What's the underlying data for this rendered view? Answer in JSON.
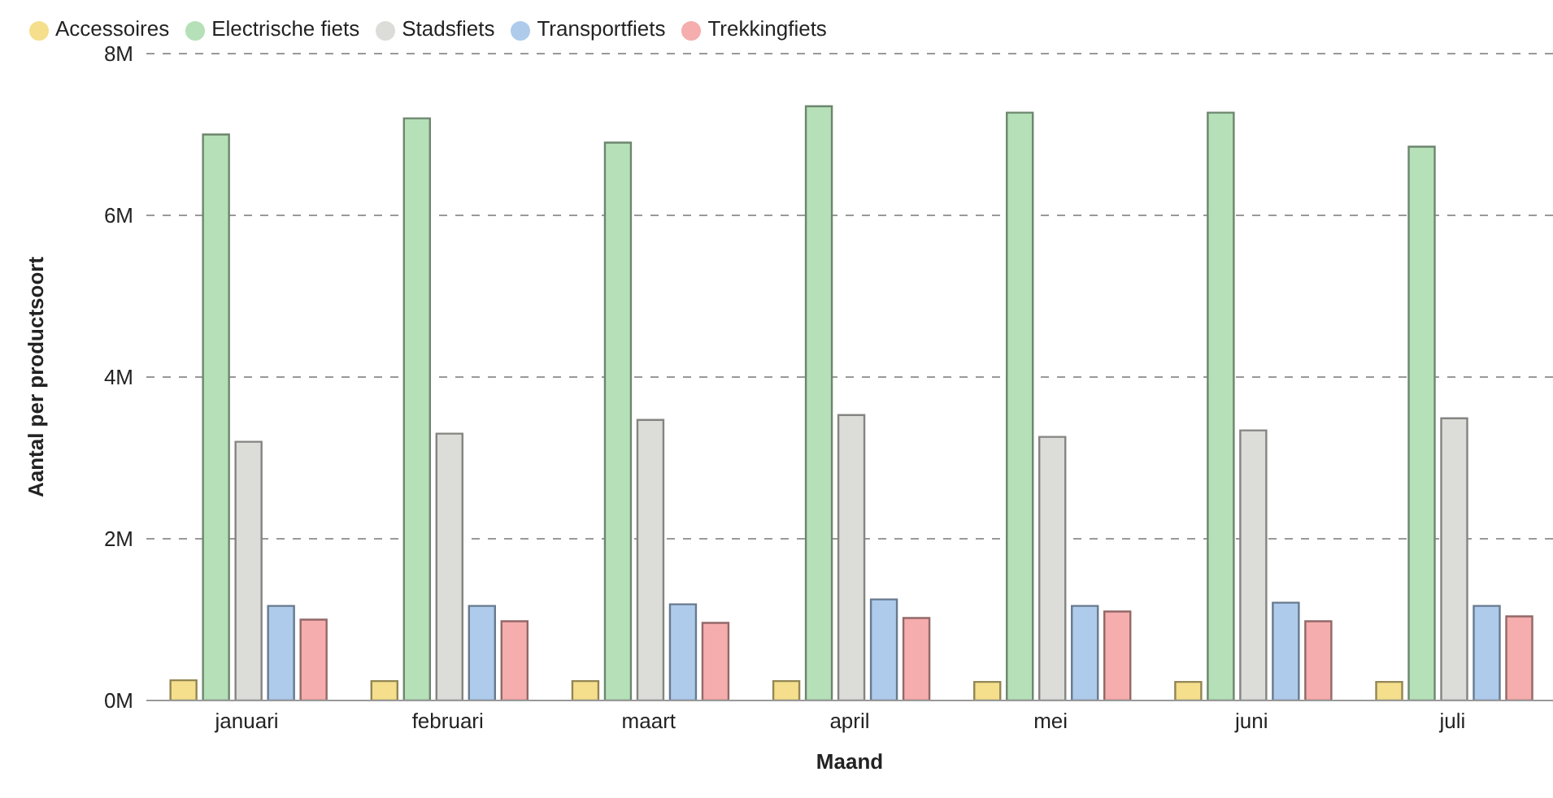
{
  "chart_data": {
    "type": "bar",
    "xlabel": "Maand",
    "ylabel": "Aantal per productsoort",
    "categories": [
      "januari",
      "februari",
      "maart",
      "april",
      "mei",
      "juni",
      "juli"
    ],
    "series": [
      {
        "name": "Accessoires",
        "color": "#f5df8c",
        "values": [
          0.25,
          0.24,
          0.24,
          0.24,
          0.23,
          0.23,
          0.23
        ]
      },
      {
        "name": "Electrische fiets",
        "color": "#b5e0b8",
        "values": [
          7.0,
          7.2,
          6.9,
          7.35,
          7.27,
          7.27,
          6.85
        ]
      },
      {
        "name": "Stadsfiets",
        "color": "#dcdcd8",
        "values": [
          3.2,
          3.3,
          3.47,
          3.53,
          3.26,
          3.34,
          3.49
        ]
      },
      {
        "name": "Transportfiets",
        "color": "#aecbec",
        "values": [
          1.17,
          1.17,
          1.19,
          1.25,
          1.17,
          1.21,
          1.17
        ]
      },
      {
        "name": "Trekkingfiets",
        "color": "#f6adad",
        "values": [
          1.0,
          0.98,
          0.96,
          1.02,
          1.1,
          0.98,
          1.04
        ]
      }
    ],
    "ylim": [
      0,
      8
    ],
    "yticks": [
      {
        "value": 0,
        "label": "0M"
      },
      {
        "value": 2,
        "label": "2M"
      },
      {
        "value": 4,
        "label": "4M"
      },
      {
        "value": 6,
        "label": "6M"
      },
      {
        "value": 8,
        "label": "8M"
      }
    ],
    "grid": "y",
    "legend": "top left"
  }
}
